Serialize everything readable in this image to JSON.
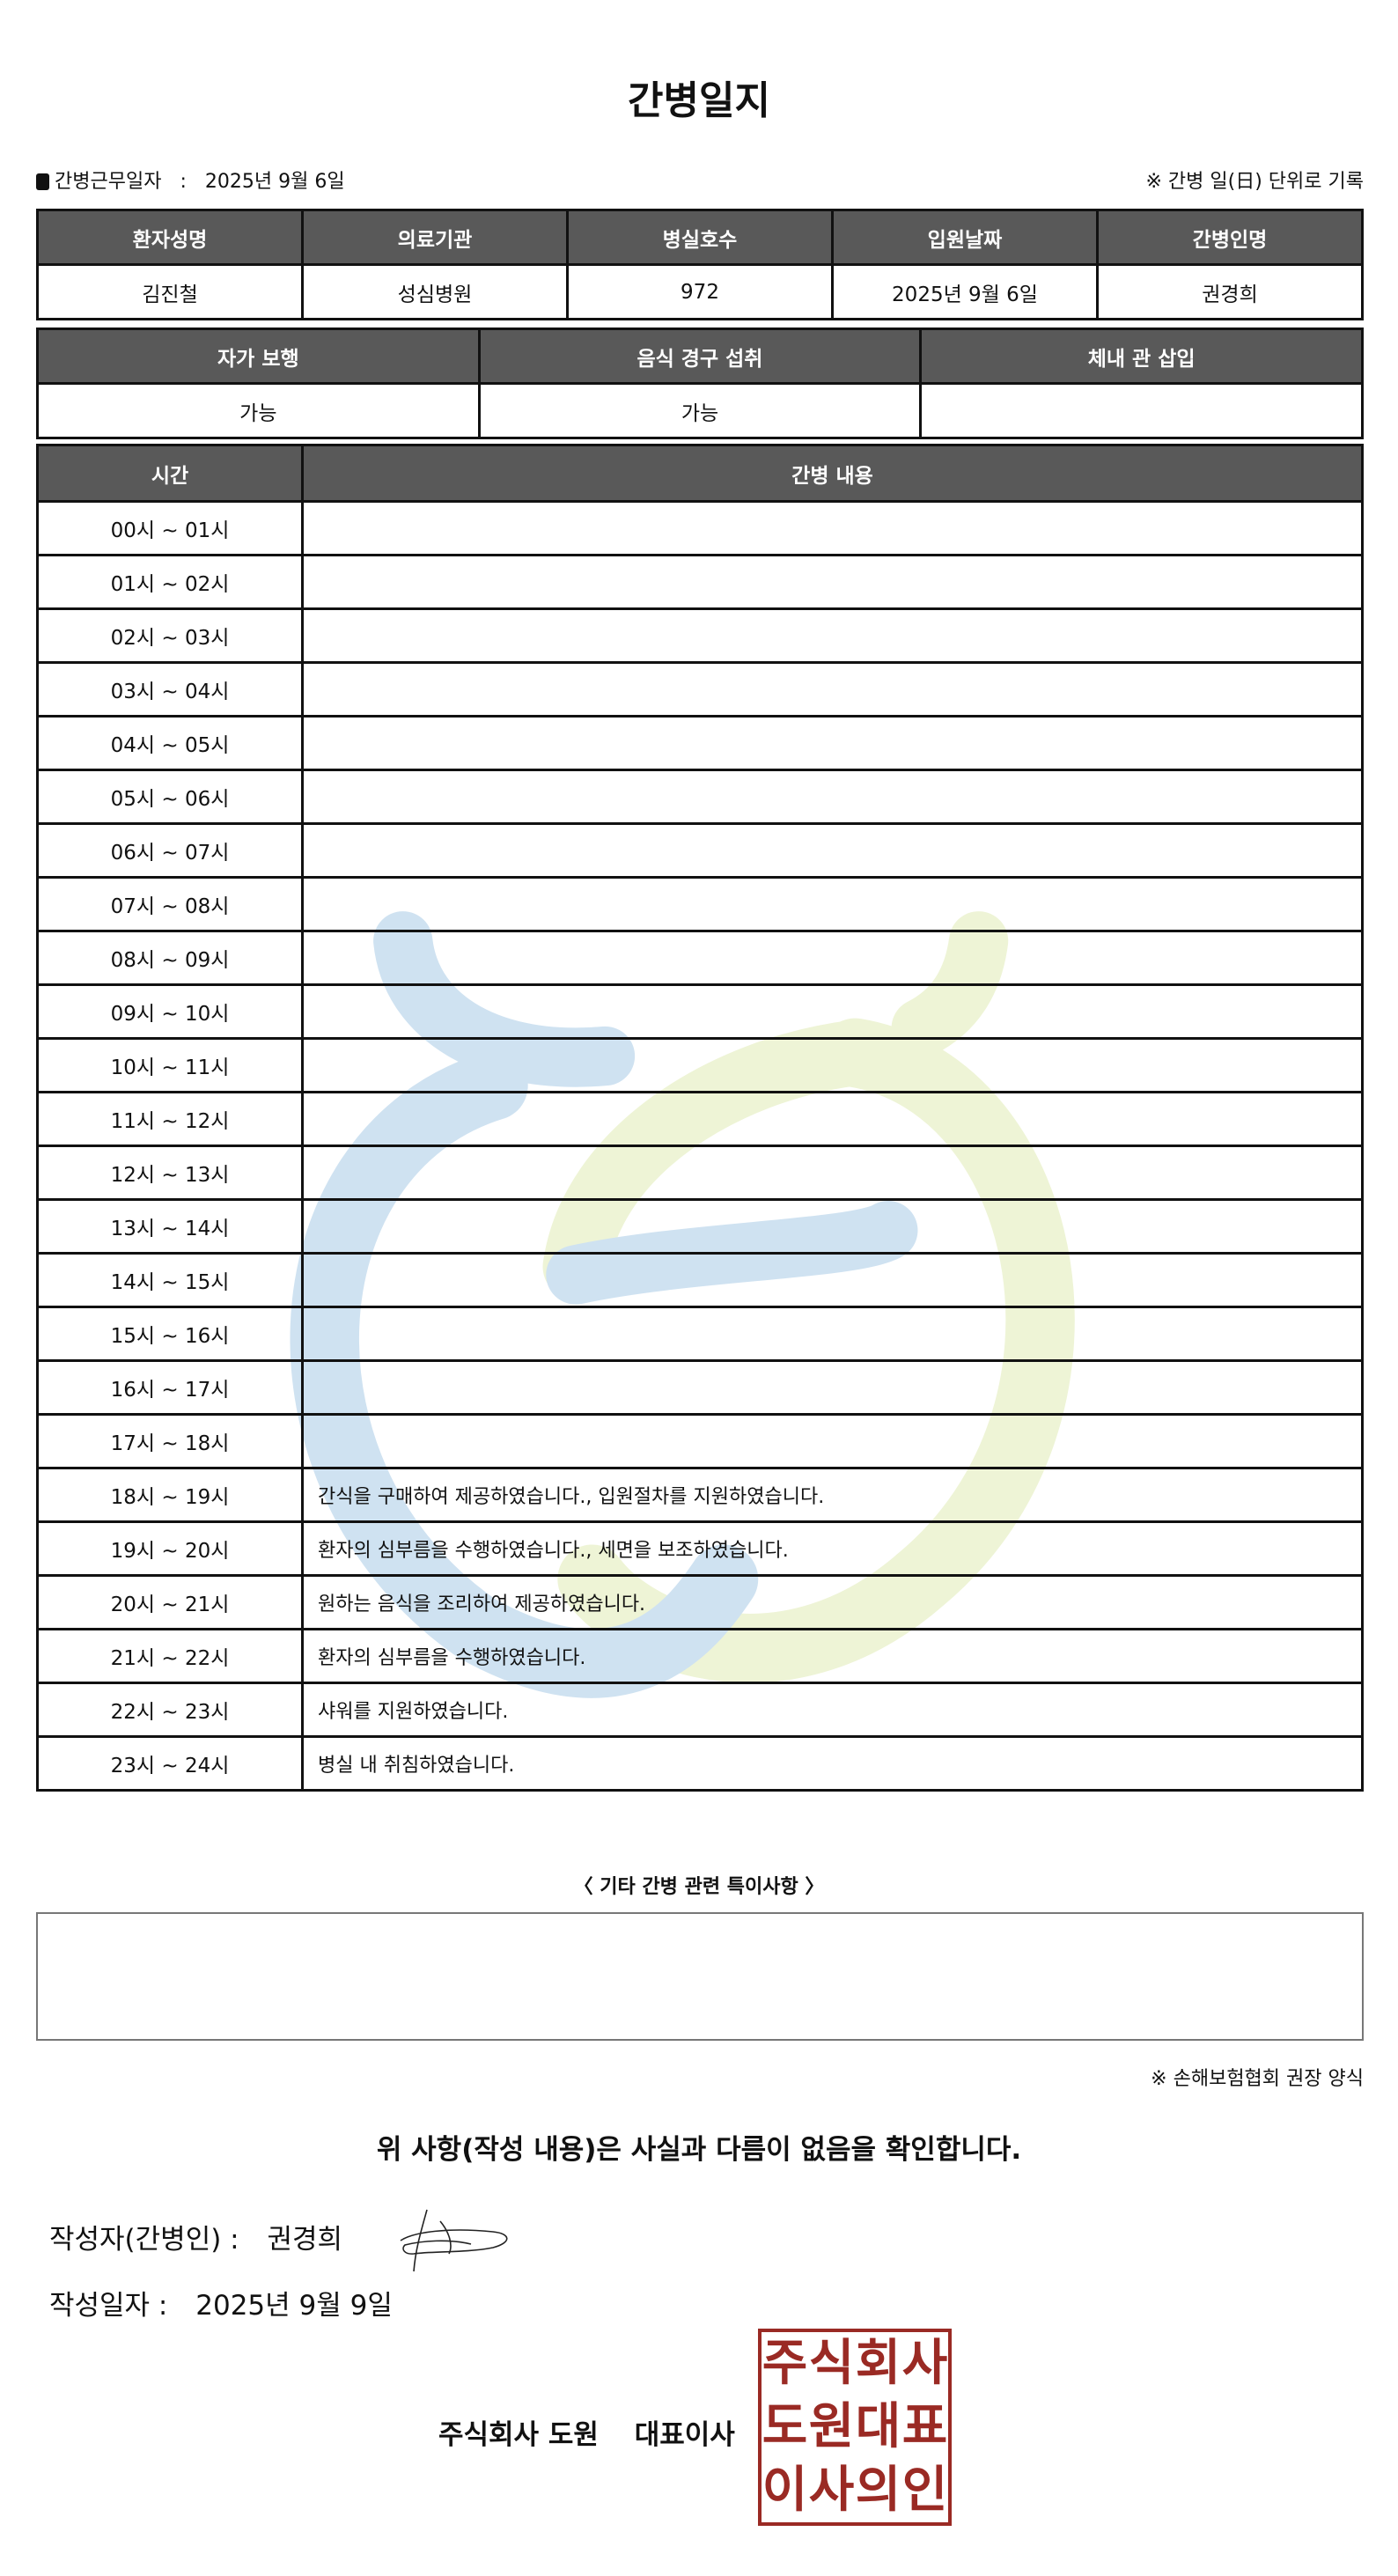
{
  "title": "간병일지",
  "work_date_label": "간병근무일자",
  "work_date_sep": ":",
  "work_date": "2025년 9월 6일",
  "unit_note": "※ 간병 일(日) 단위로 기록",
  "info_table": {
    "headers": [
      "환자성명",
      "의료기관",
      "병실호수",
      "입원날짜",
      "간병인명"
    ],
    "values": [
      "김진철",
      "성심병원",
      "972",
      "2025년 9월 6일",
      "권경희"
    ]
  },
  "status_table": {
    "headers": [
      "자가 보행",
      "음식 경구 섭취",
      "체내 관 삽입"
    ],
    "values": [
      "가능",
      "가능",
      ""
    ]
  },
  "log_table": {
    "headers": [
      "시간",
      "간병 내용"
    ],
    "rows": [
      {
        "time": "00시 ~ 01시",
        "content": ""
      },
      {
        "time": "01시 ~ 02시",
        "content": ""
      },
      {
        "time": "02시 ~ 03시",
        "content": ""
      },
      {
        "time": "03시 ~ 04시",
        "content": ""
      },
      {
        "time": "04시 ~ 05시",
        "content": ""
      },
      {
        "time": "05시 ~ 06시",
        "content": ""
      },
      {
        "time": "06시 ~ 07시",
        "content": ""
      },
      {
        "time": "07시 ~ 08시",
        "content": ""
      },
      {
        "time": "08시 ~ 09시",
        "content": ""
      },
      {
        "time": "09시 ~ 10시",
        "content": ""
      },
      {
        "time": "10시 ~ 11시",
        "content": ""
      },
      {
        "time": "11시 ~ 12시",
        "content": ""
      },
      {
        "time": "12시 ~ 13시",
        "content": ""
      },
      {
        "time": "13시 ~ 14시",
        "content": ""
      },
      {
        "time": "14시 ~ 15시",
        "content": ""
      },
      {
        "time": "15시 ~ 16시",
        "content": ""
      },
      {
        "time": "16시 ~ 17시",
        "content": ""
      },
      {
        "time": "17시 ~ 18시",
        "content": ""
      },
      {
        "time": "18시 ~ 19시",
        "content": "간식을 구매하여 제공하였습니다., 입원절차를 지원하였습니다."
      },
      {
        "time": "19시 ~ 20시",
        "content": "환자의 심부름을 수행하였습니다., 세면을 보조하였습니다."
      },
      {
        "time": "20시 ~ 21시",
        "content": "원하는 음식을 조리하여 제공하였습니다."
      },
      {
        "time": "21시 ~ 22시",
        "content": "환자의 심부름을 수행하였습니다."
      },
      {
        "time": "22시 ~ 23시",
        "content": "샤워를 지원하였습니다."
      },
      {
        "time": "23시 ~ 24시",
        "content": "병실 내 취침하였습니다."
      }
    ]
  },
  "notes_title": "〈 기타 간병 관련 특이사항 〉",
  "notes": "",
  "form_note": "※ 손해보험협회 권장 양식",
  "confirm_text": "위 사항(작성 내용)은 사실과 다름이 없음을 확인합니다.",
  "writer_label": "작성자(간병인) :",
  "writer_name": "권경희",
  "written_date_label": "작성일자 :",
  "written_date": "2025년 9월 9일",
  "company": "주식회사 도원",
  "ceo_label": "대표이사",
  "seal_text": [
    "주",
    "식",
    "회",
    "사",
    "도",
    "원",
    "대",
    "표",
    "이",
    "사",
    "의",
    "인"
  ],
  "colors": {
    "header_fill": "#595959",
    "seal": "#9a2a24",
    "watermark_blue": "#cfe2f1",
    "watermark_green": "#eef4d6"
  }
}
